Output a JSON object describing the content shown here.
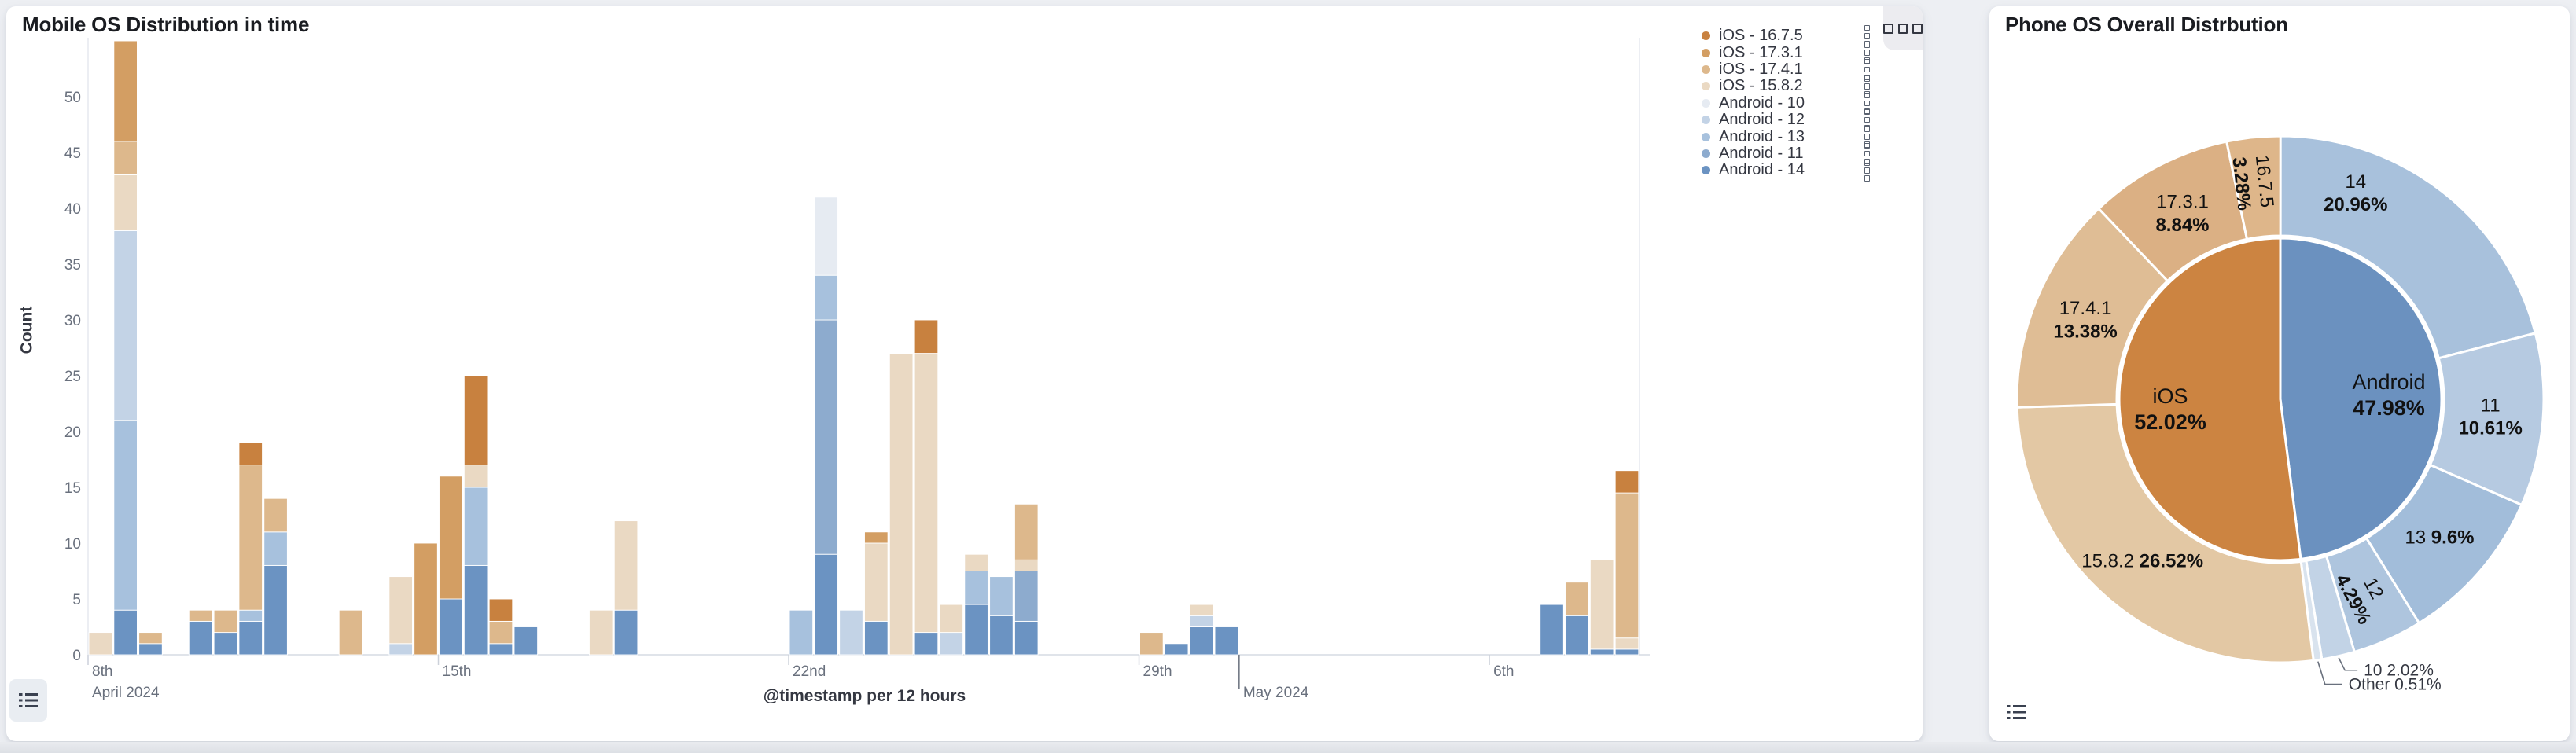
{
  "page": {
    "background": "#edeff3"
  },
  "panels": {
    "left": {
      "title": "Mobile OS Distribution in time"
    },
    "right": {
      "title": "Phone OS Overall Distrbution"
    }
  },
  "icons": {
    "panel_options": "boxes-horizontal-icon",
    "legend_row_action": "boxes-vertical-icon",
    "legend_toggle": "list-icon"
  },
  "chart_data": [
    {
      "type": "bar",
      "title": "Mobile OS Distribution in time",
      "stacked": true,
      "xlabel": "@timestamp per 12 hours",
      "ylabel": "Count",
      "ylim": [
        0,
        55
      ],
      "yticks": [
        0,
        5,
        10,
        15,
        20,
        25,
        30,
        35,
        40,
        45,
        50
      ],
      "grid": false,
      "legend_position": "right",
      "x_domain": {
        "start": "2024-04-08 00:00",
        "end": "2024-05-09 00:00",
        "bucket_hours": 12,
        "buckets_total": 62
      },
      "x_ticks": [
        {
          "i": 0,
          "label": "8th",
          "sub": "April 2024"
        },
        {
          "i": 14,
          "label": "15th"
        },
        {
          "i": 28,
          "label": "22nd"
        },
        {
          "i": 42,
          "label": "29th"
        },
        {
          "i": 46,
          "label": "May 2024",
          "major": true,
          "second_row": true
        },
        {
          "i": 56,
          "label": "6th"
        }
      ],
      "series": [
        {
          "key": "ios_16_7_5",
          "label": "iOS - 16.7.5",
          "color": "#c8813f"
        },
        {
          "key": "ios_17_3_1",
          "label": "iOS - 17.3.1",
          "color": "#d39e63"
        },
        {
          "key": "ios_17_4_1",
          "label": "iOS - 17.4.1",
          "color": "#ddb88c"
        },
        {
          "key": "ios_15_8_2",
          "label": "iOS - 15.8.2",
          "color": "#ead9c3"
        },
        {
          "key": "and_10",
          "label": "Android - 10",
          "color": "#e6ebf2"
        },
        {
          "key": "and_12",
          "label": "Android - 12",
          "color": "#c3d3e6"
        },
        {
          "key": "and_13",
          "label": "Android - 13",
          "color": "#a7c1dd"
        },
        {
          "key": "and_11",
          "label": "Android - 11",
          "color": "#8dabce"
        },
        {
          "key": "and_14",
          "label": "Android - 14",
          "color": "#6b93c2"
        }
      ],
      "stack_order": [
        "and_14",
        "and_11",
        "and_13",
        "and_12",
        "and_10",
        "ios_15_8_2",
        "ios_17_4_1",
        "ios_17_3_1",
        "ios_16_7_5"
      ],
      "bars": [
        {
          "i": 0,
          "seg": {
            "ios_15_8_2": 2
          }
        },
        {
          "i": 1,
          "seg": {
            "and_14": 4,
            "and_13": 17,
            "and_12": 17,
            "ios_15_8_2": 5,
            "ios_17_4_1": 3,
            "ios_17_3_1": 9
          }
        },
        {
          "i": 2,
          "seg": {
            "and_14": 1,
            "ios_17_4_1": 1
          }
        },
        {
          "i": 4,
          "seg": {
            "and_14": 3,
            "ios_17_4_1": 1
          }
        },
        {
          "i": 5,
          "seg": {
            "and_14": 2,
            "ios_17_4_1": 2
          }
        },
        {
          "i": 6,
          "seg": {
            "and_14": 3,
            "and_13": 1,
            "ios_17_4_1": 13,
            "ios_16_7_5": 2
          }
        },
        {
          "i": 7,
          "seg": {
            "and_14": 8,
            "and_13": 3,
            "ios_17_4_1": 3
          }
        },
        {
          "i": 10,
          "seg": {
            "ios_17_4_1": 4
          }
        },
        {
          "i": 12,
          "seg": {
            "and_12": 1,
            "ios_15_8_2": 6
          }
        },
        {
          "i": 13,
          "seg": {
            "ios_17_3_1": 10
          }
        },
        {
          "i": 14,
          "seg": {
            "and_14": 5,
            "ios_17_3_1": 11
          }
        },
        {
          "i": 15,
          "seg": {
            "and_14": 8,
            "and_13": 7,
            "ios_15_8_2": 2,
            "ios_16_7_5": 8
          }
        },
        {
          "i": 16,
          "seg": {
            "and_14": 1,
            "ios_17_4_1": 2,
            "ios_16_7_5": 2
          }
        },
        {
          "i": 17,
          "seg": {
            "and_14": 2.5
          }
        },
        {
          "i": 20,
          "seg": {
            "ios_15_8_2": 4
          }
        },
        {
          "i": 21,
          "seg": {
            "and_14": 4,
            "ios_15_8_2": 8
          }
        },
        {
          "i": 28,
          "seg": {
            "and_13": 4
          }
        },
        {
          "i": 29,
          "seg": {
            "and_14": 9,
            "and_11": 21,
            "and_13": 4,
            "and_10": 7
          }
        },
        {
          "i": 30,
          "seg": {
            "and_12": 4
          }
        },
        {
          "i": 31,
          "seg": {
            "and_14": 3,
            "ios_15_8_2": 7,
            "ios_17_3_1": 1
          }
        },
        {
          "i": 32,
          "seg": {
            "ios_15_8_2": 27
          }
        },
        {
          "i": 33,
          "seg": {
            "and_14": 2,
            "ios_15_8_2": 25,
            "ios_16_7_5": 3
          }
        },
        {
          "i": 34,
          "seg": {
            "and_12": 2,
            "ios_15_8_2": 2.5
          }
        },
        {
          "i": 35,
          "seg": {
            "and_14": 4.5,
            "and_13": 3,
            "ios_15_8_2": 1.5
          }
        },
        {
          "i": 36,
          "seg": {
            "and_14": 3.5,
            "and_13": 3.5
          }
        },
        {
          "i": 37,
          "seg": {
            "and_14": 3,
            "and_11": 4.5,
            "ios_15_8_2": 1,
            "ios_17_4_1": 5
          }
        },
        {
          "i": 42,
          "seg": {
            "ios_17_4_1": 2
          }
        },
        {
          "i": 43,
          "seg": {
            "and_14": 1
          }
        },
        {
          "i": 44,
          "seg": {
            "and_14": 2.5,
            "and_12": 1,
            "ios_15_8_2": 1
          }
        },
        {
          "i": 45,
          "seg": {
            "and_14": 2.5
          }
        },
        {
          "i": 58,
          "seg": {
            "and_14": 4.5
          }
        },
        {
          "i": 59,
          "seg": {
            "and_14": 3.5,
            "ios_17_4_1": 3
          }
        },
        {
          "i": 60,
          "seg": {
            "and_14": 0.5,
            "ios_15_8_2": 8
          }
        },
        {
          "i": 61,
          "seg": {
            "and_14": 0.5,
            "ios_15_8_2": 1,
            "ios_17_4_1": 13,
            "ios_16_7_5": 2
          }
        }
      ]
    },
    {
      "type": "pie",
      "subtype": "sunburst-donut",
      "title": "Phone OS Overall Distrbution",
      "inner_ring": [
        {
          "label": "Android",
          "pct": 47.98,
          "pct_text": "47.98%",
          "color": "#6b91bf"
        },
        {
          "label": "iOS",
          "pct": 52.02,
          "pct_text": "52.02%",
          "color": "#cc8441"
        }
      ],
      "outer_ring": [
        {
          "label": "14",
          "parent": "Android",
          "pct": 20.96,
          "pct_text": "20.96%",
          "color": "#a8c1dc",
          "label_style": "two-line"
        },
        {
          "label": "11",
          "parent": "Android",
          "pct": 10.61,
          "pct_text": "10.61%",
          "color": "#b6cae1",
          "label_style": "two-line"
        },
        {
          "label": "13",
          "parent": "Android",
          "pct": 9.6,
          "pct_text": "9.6%",
          "color": "#a2bdda",
          "label_style": "inline"
        },
        {
          "label": "12",
          "parent": "Android",
          "pct": 4.29,
          "pct_text": "4.29%",
          "color": "#aec5de",
          "label_style": "rotated"
        },
        {
          "label": "10",
          "parent": "Android",
          "pct": 2.02,
          "pct_text": "2.02%",
          "color": "#c2d3e6",
          "label_style": "leader"
        },
        {
          "label": "Other",
          "parent": "Android",
          "pct": 0.51,
          "pct_text": "0.51%",
          "color": "#d9e3ee",
          "label_style": "leader"
        },
        {
          "label": "15.8.2",
          "parent": "iOS",
          "pct": 26.52,
          "pct_text": "26.52%",
          "color": "#e3c8a4",
          "label_style": "inline"
        },
        {
          "label": "17.4.1",
          "parent": "iOS",
          "pct": 13.38,
          "pct_text": "13.38%",
          "color": "#dfbd95",
          "label_style": "two-line"
        },
        {
          "label": "17.3.1",
          "parent": "iOS",
          "pct": 8.84,
          "pct_text": "8.84%",
          "color": "#dbb084",
          "label_style": "two-line"
        },
        {
          "label": "16.7.5",
          "parent": "iOS",
          "pct": 3.28,
          "pct_text": "3.28%",
          "color": "#deb68a",
          "label_style": "rotated90"
        }
      ],
      "start_angle_deg": 0,
      "direction": "clockwise"
    }
  ]
}
